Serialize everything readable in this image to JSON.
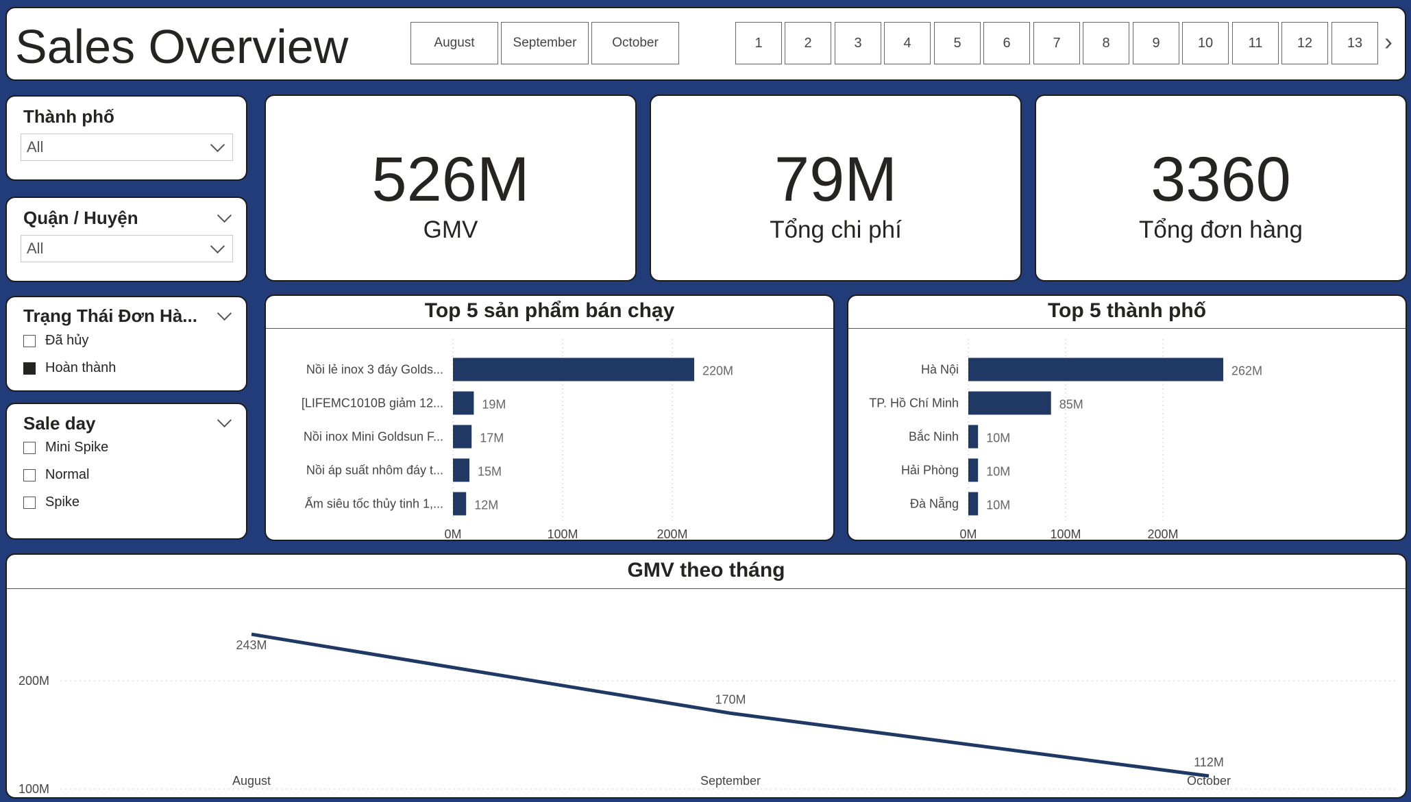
{
  "header": {
    "title": "Sales Overview",
    "months": [
      "August",
      "September",
      "October"
    ],
    "pages": [
      "1",
      "2",
      "3",
      "4",
      "5",
      "6",
      "7",
      "8",
      "9",
      "10",
      "11",
      "12",
      "13"
    ],
    "next_icon": "chevron-right-icon"
  },
  "filters": {
    "city": {
      "title": "Thành phố",
      "value": "All"
    },
    "district": {
      "title": "Quận / Huyện",
      "value": "All"
    },
    "order_status": {
      "title": "Trạng Thái Đơn Hà...",
      "options": [
        {
          "label": "Đã hủy",
          "checked": false
        },
        {
          "label": "Hoàn thành",
          "checked": true
        }
      ]
    },
    "sale_day": {
      "title": "Sale day",
      "options": [
        {
          "label": "Mini Spike",
          "checked": false
        },
        {
          "label": "Normal",
          "checked": false
        },
        {
          "label": "Spike",
          "checked": false
        }
      ]
    }
  },
  "kpis": [
    {
      "value": "526M",
      "label": "GMV"
    },
    {
      "value": "79M",
      "label": "Tổng chi phí"
    },
    {
      "value": "3360",
      "label": "Tổng đơn hàng"
    }
  ],
  "colors": {
    "accent": "#1f3864",
    "background": "#223c7a"
  },
  "chart_data": [
    {
      "type": "bar",
      "orientation": "horizontal",
      "title": "Top 5 sản phẩm bán chạy",
      "categories": [
        "Nồi lẻ inox 3 đáy Golds...",
        "[LIFEMC1010B giảm 12...",
        "Nồi inox Mini Goldsun F...",
        "Nồi áp suất nhôm đáy t...",
        "Ấm siêu tốc thủy tinh 1,..."
      ],
      "values": [
        220,
        19,
        17,
        15,
        12
      ],
      "value_labels": [
        "220M",
        "19M",
        "17M",
        "15M",
        "12M"
      ],
      "xticks": [
        "0M",
        "100M",
        "200M"
      ],
      "xlim": [
        0,
        250
      ],
      "grid": true
    },
    {
      "type": "bar",
      "orientation": "horizontal",
      "title": "Top 5 thành phố",
      "categories": [
        "Hà Nội",
        "TP. Hồ Chí Minh",
        "Bắc Ninh",
        "Hải Phòng",
        "Đà Nẵng"
      ],
      "values": [
        262,
        85,
        10,
        10,
        10
      ],
      "value_labels": [
        "262M",
        "85M",
        "10M",
        "10M",
        "10M"
      ],
      "xticks": [
        "0M",
        "100M",
        "200M"
      ],
      "xlim": [
        0,
        300
      ],
      "grid": true
    },
    {
      "type": "line",
      "title": "GMV theo tháng",
      "x": [
        "August",
        "September",
        "October"
      ],
      "values": [
        243,
        170,
        112
      ],
      "value_labels": [
        "243M",
        "170M",
        "112M"
      ],
      "yticks": [
        "100M",
        "200M"
      ],
      "ylim": [
        100,
        250
      ],
      "grid": true
    }
  ]
}
